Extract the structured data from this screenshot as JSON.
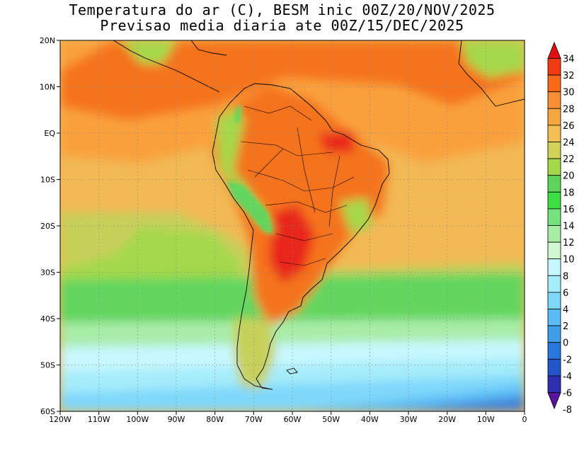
{
  "title": {
    "line1": "Temperatura do ar (C), BESM inic 00Z/20/NOV/2025",
    "line2": "Previsao media diaria ate 00Z/15/DEC/2025"
  },
  "map": {
    "region": "South America",
    "lon_range": [
      -120,
      0
    ],
    "lat_range": [
      -60,
      20
    ],
    "lon_ticks": [
      "120W",
      "110W",
      "100W",
      "90W",
      "80W",
      "70W",
      "60W",
      "50W",
      "40W",
      "30W",
      "20W",
      "10W",
      "0"
    ],
    "lat_ticks": [
      "20N",
      "10N",
      "EQ",
      "10S",
      "20S",
      "30S",
      "40S",
      "50S",
      "60S"
    ]
  },
  "colorbar": {
    "levels": [
      "34",
      "32",
      "30",
      "28",
      "26",
      "24",
      "22",
      "20",
      "18",
      "16",
      "14",
      "12",
      "10",
      "8",
      "6",
      "4",
      "2",
      "0",
      "-2",
      "-4",
      "-6",
      "-8"
    ],
    "colors": [
      "#e01010",
      "#f03c14",
      "#f86a1a",
      "#f98f35",
      "#f5a742",
      "#f2bf55",
      "#d3d25a",
      "#a5d84b",
      "#5ed45c",
      "#3ede45",
      "#76e27e",
      "#a8eca8",
      "#d2f8d2",
      "#c8f8ff",
      "#a6ecfb",
      "#7fd8fa",
      "#5cbcf6",
      "#3f9ee8",
      "#2a78de",
      "#2256c8",
      "#2e2eb0",
      "#5a14a0"
    ],
    "units": "C"
  },
  "field_colors": {
    "hot": "#e8281e",
    "warm": "#f5731f",
    "orange": "#f9a03c",
    "tan": "#f2b955",
    "yellowgreen": "#c8d05b",
    "green": "#62d65e",
    "lightgreen": "#a8eca8",
    "cyan": "#a8ecfb",
    "blue": "#5cbcf6",
    "deepblue": "#3f7fd8"
  }
}
